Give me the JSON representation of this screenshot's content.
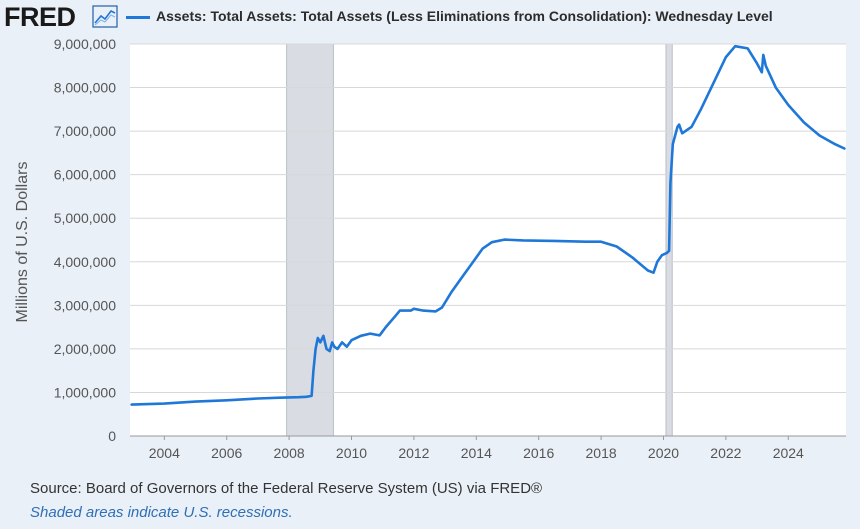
{
  "header": {
    "logo_text": "FRED",
    "logo_icon": "line-chart-icon"
  },
  "chart_data": {
    "type": "line",
    "series": [
      {
        "name": "Assets: Total Assets: Total Assets (Less Eliminations from Consolidation): Wednesday Level",
        "color": "#1f77d8",
        "points": [
          [
            2002.95,
            720000
          ],
          [
            2004.0,
            745000
          ],
          [
            2005.0,
            790000
          ],
          [
            2006.0,
            820000
          ],
          [
            2007.0,
            860000
          ],
          [
            2007.7,
            880000
          ],
          [
            2008.3,
            890000
          ],
          [
            2008.55,
            900000
          ],
          [
            2008.72,
            920000
          ],
          [
            2008.78,
            1500000
          ],
          [
            2008.85,
            2000000
          ],
          [
            2008.92,
            2250000
          ],
          [
            2009.0,
            2150000
          ],
          [
            2009.1,
            2300000
          ],
          [
            2009.2,
            2000000
          ],
          [
            2009.3,
            1950000
          ],
          [
            2009.38,
            2150000
          ],
          [
            2009.45,
            2050000
          ],
          [
            2009.55,
            2000000
          ],
          [
            2009.7,
            2150000
          ],
          [
            2009.85,
            2050000
          ],
          [
            2010.0,
            2200000
          ],
          [
            2010.3,
            2300000
          ],
          [
            2010.6,
            2350000
          ],
          [
            2010.9,
            2310000
          ],
          [
            2011.1,
            2500000
          ],
          [
            2011.4,
            2750000
          ],
          [
            2011.55,
            2880000
          ],
          [
            2011.9,
            2880000
          ],
          [
            2012.0,
            2920000
          ],
          [
            2012.3,
            2880000
          ],
          [
            2012.7,
            2860000
          ],
          [
            2012.9,
            2950000
          ],
          [
            2013.2,
            3300000
          ],
          [
            2013.6,
            3700000
          ],
          [
            2013.9,
            4000000
          ],
          [
            2014.2,
            4300000
          ],
          [
            2014.5,
            4450000
          ],
          [
            2014.9,
            4510000
          ],
          [
            2015.5,
            4490000
          ],
          [
            2016.5,
            4480000
          ],
          [
            2017.5,
            4460000
          ],
          [
            2018.0,
            4460000
          ],
          [
            2018.5,
            4350000
          ],
          [
            2019.0,
            4100000
          ],
          [
            2019.5,
            3800000
          ],
          [
            2019.68,
            3750000
          ],
          [
            2019.8,
            4000000
          ],
          [
            2019.95,
            4150000
          ],
          [
            2020.1,
            4200000
          ],
          [
            2020.18,
            4250000
          ],
          [
            2020.22,
            5800000
          ],
          [
            2020.3,
            6700000
          ],
          [
            2020.45,
            7100000
          ],
          [
            2020.5,
            7150000
          ],
          [
            2020.6,
            6950000
          ],
          [
            2020.9,
            7100000
          ],
          [
            2021.2,
            7500000
          ],
          [
            2021.6,
            8100000
          ],
          [
            2022.0,
            8700000
          ],
          [
            2022.3,
            8950000
          ],
          [
            2022.7,
            8900000
          ],
          [
            2023.0,
            8550000
          ],
          [
            2023.15,
            8350000
          ],
          [
            2023.2,
            8750000
          ],
          [
            2023.28,
            8500000
          ],
          [
            2023.6,
            8000000
          ],
          [
            2024.0,
            7600000
          ],
          [
            2024.5,
            7200000
          ],
          [
            2025.0,
            6900000
          ],
          [
            2025.5,
            6700000
          ],
          [
            2025.8,
            6600000
          ]
        ]
      }
    ],
    "xlim": [
      2002.9,
      2025.85
    ],
    "ylim": [
      0,
      9000000
    ],
    "xticks": [
      2004,
      2006,
      2008,
      2010,
      2012,
      2014,
      2016,
      2018,
      2020,
      2022,
      2024
    ],
    "xtick_labels": [
      "2004",
      "2006",
      "2008",
      "2010",
      "2012",
      "2014",
      "2016",
      "2018",
      "2020",
      "2022",
      "2024"
    ],
    "yticks": [
      0,
      1000000,
      2000000,
      3000000,
      4000000,
      5000000,
      6000000,
      7000000,
      8000000,
      9000000
    ],
    "ytick_labels": [
      "0",
      "1,000,000",
      "2,000,000",
      "3,000,000",
      "4,000,000",
      "5,000,000",
      "6,000,000",
      "7,000,000",
      "8,000,000",
      "9,000,000"
    ],
    "ylabel": "Millions of U.S. Dollars",
    "xlabel": "",
    "grid": true,
    "recessions": [
      [
        2007.92,
        2009.42
      ],
      [
        2020.08,
        2020.28
      ]
    ],
    "recession_color": "#d9dde3",
    "legend_placement": "top"
  },
  "footer": {
    "source": "Source: Board of Governors of the Federal Reserve System (US) via FRED®",
    "recession_note": "Shaded areas indicate U.S. recessions."
  }
}
